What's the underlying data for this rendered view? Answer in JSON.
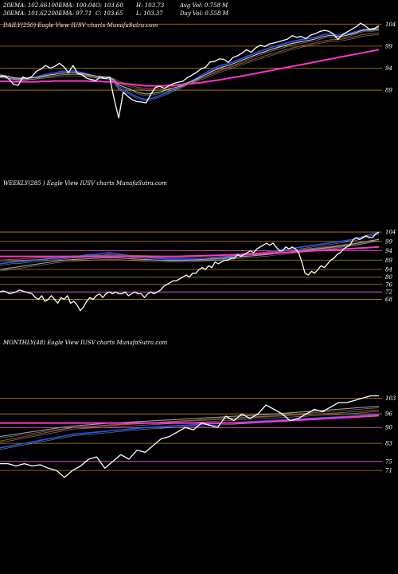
{
  "header": {
    "line1": [
      "20EMA: 102.66",
      "100EMA: 100.04",
      "O: 103.60",
      "H: 103.73",
      "Avg Vol: 0.758  M"
    ],
    "line2": [
      "30EMA: 101.62",
      "200EMA: 97.71",
      "C: 103.65",
      "L: 103.37",
      "Day Vol: 0.558 M"
    ]
  },
  "colors": {
    "background": "#000000",
    "price": "#ffffff",
    "ema_blue": "#2255ff",
    "ema_magenta": "#ff33cc",
    "ema_brown": "#a0522d",
    "ema_tan": "#d8c89a",
    "ema_grey": "#aaaaaa",
    "level_line": "#b8860b",
    "level_line_pink": "#ff66cc"
  },
  "chart_data": [
    {
      "type": "line",
      "title": "DAILY(250) Eagle  View  IUSV charts MunafaSutra.com",
      "ticks": [
        104,
        99,
        94,
        89
      ],
      "ylim": [
        80.5,
        105.5
      ],
      "series": [
        {
          "role": "price",
          "values": [
            92.0,
            92.2,
            91.5,
            90.3,
            90.1,
            92.0,
            91.6,
            92.1,
            93.3,
            93.8,
            94.6,
            94.0,
            94.4,
            95.1,
            94.3,
            93.0,
            94.6,
            92.8,
            92.5,
            91.7,
            91.4,
            91.2,
            92.0,
            91.6,
            92.0,
            87.0,
            82.7,
            88.5,
            87.6,
            86.8,
            86.4,
            86.3,
            86.1,
            88.0,
            89.6,
            89.9,
            89.4,
            90.0,
            90.5,
            90.8,
            91.0,
            91.8,
            92.4,
            93.0,
            93.8,
            94.2,
            95.4,
            95.5,
            96.1,
            96.0,
            95.3,
            96.4,
            96.8,
            97.4,
            98.2,
            97.6,
            98.6,
            99.2,
            98.9,
            99.5,
            99.7,
            100.0,
            100.3,
            100.6,
            101.4,
            101.0,
            101.2,
            100.7,
            101.5,
            101.8,
            102.3,
            102.6,
            102.4,
            101.8,
            100.5,
            101.6,
            102.2,
            102.8,
            103.4,
            104.2,
            103.6,
            102.8,
            103.0,
            103.6
          ]
        },
        {
          "role": "ema",
          "color": "blue",
          "values": [
            92.5,
            92.3,
            92.0,
            91.6,
            91.5,
            91.6,
            91.7,
            91.8,
            92.0,
            92.3,
            92.6,
            92.8,
            92.9,
            93.2,
            93.3,
            93.2,
            93.4,
            93.2,
            93.0,
            92.7,
            92.4,
            92.1,
            92.0,
            91.9,
            91.8,
            91.0,
            89.5,
            89.0,
            88.6,
            88.0,
            87.5,
            87.1,
            86.9,
            87.1,
            87.4,
            87.8,
            88.2,
            88.6,
            89.1,
            89.5,
            90.0,
            90.6,
            91.1,
            91.7,
            92.3,
            92.9,
            93.5,
            94.0,
            94.5,
            94.8,
            95.0,
            95.4,
            95.8,
            96.2,
            96.7,
            97.0,
            97.5,
            97.9,
            98.2,
            98.6,
            98.9,
            99.2,
            99.5,
            99.8,
            100.1,
            100.3,
            100.5,
            100.6,
            100.8,
            101.0,
            101.3,
            101.6,
            101.8,
            101.7,
            101.5,
            101.6,
            101.8,
            102.0,
            102.3,
            102.7,
            102.9,
            102.9,
            103.0,
            103.2
          ]
        },
        {
          "role": "ema",
          "color": "brown",
          "values": [
            92.2,
            92.1,
            92.0,
            91.9,
            91.8,
            91.8,
            91.8,
            91.8,
            91.9,
            92.0,
            92.1,
            92.2,
            92.3,
            92.4,
            92.5,
            92.5,
            92.6,
            92.6,
            92.5,
            92.4,
            92.3,
            92.2,
            92.1,
            92.0,
            91.9,
            91.6,
            91.0,
            90.6,
            90.3,
            90.0,
            89.7,
            89.5,
            89.3,
            89.3,
            89.3,
            89.4,
            89.5,
            89.7,
            89.9,
            90.1,
            90.4,
            90.7,
            91.0,
            91.3,
            91.7,
            92.1,
            92.5,
            92.9,
            93.3,
            93.7,
            94.0,
            94.4,
            94.8,
            95.1,
            95.5,
            95.8,
            96.2,
            96.5,
            96.8,
            97.1,
            97.4,
            97.7,
            98.0,
            98.3,
            98.6,
            98.8,
            99.1,
            99.3,
            99.5,
            99.7,
            100.0,
            100.2,
            100.4,
            100.5,
            100.5,
            100.6,
            100.8,
            101.0,
            101.2,
            101.5,
            101.7,
            101.8,
            101.9,
            102.0
          ]
        },
        {
          "role": "ema",
          "color": "tan",
          "values": [
            92.4,
            92.3,
            92.1,
            91.8,
            91.7,
            91.7,
            91.7,
            91.8,
            91.9,
            92.1,
            92.3,
            92.5,
            92.6,
            92.8,
            92.9,
            92.9,
            93.0,
            92.9,
            92.8,
            92.6,
            92.4,
            92.2,
            92.1,
            92.0,
            91.9,
            91.3,
            90.2,
            89.8,
            89.4,
            89.0,
            88.6,
            88.3,
            88.1,
            88.2,
            88.4,
            88.6,
            88.9,
            89.2,
            89.5,
            89.8,
            90.2,
            90.6,
            91.0,
            91.5,
            92.0,
            92.5,
            93.0,
            93.5,
            93.9,
            94.3,
            94.6,
            95.0,
            95.4,
            95.8,
            96.2,
            96.6,
            97.0,
            97.4,
            97.7,
            98.1,
            98.4,
            98.7,
            99.0,
            99.3,
            99.6,
            99.8,
            100.0,
            100.2,
            100.4,
            100.6,
            100.9,
            101.2,
            101.4,
            101.4,
            101.2,
            101.3,
            101.5,
            101.8,
            102.1,
            102.5,
            102.7,
            102.7,
            102.8,
            102.9
          ]
        },
        {
          "role": "ema",
          "color": "magenta",
          "values": [
            91.0,
            91.0,
            91.0,
            90.9,
            90.9,
            90.9,
            90.9,
            90.9,
            90.9,
            91.0,
            91.0,
            91.0,
            91.1,
            91.1,
            91.1,
            91.1,
            91.1,
            91.1,
            91.1,
            91.1,
            91.0,
            91.0,
            91.0,
            90.9,
            90.9,
            90.8,
            90.6,
            90.5,
            90.4,
            90.3,
            90.2,
            90.1,
            90.0,
            90.0,
            90.0,
            90.0,
            90.0,
            90.1,
            90.1,
            90.2,
            90.3,
            90.4,
            90.5,
            90.6,
            90.7,
            90.9,
            91.0,
            91.2,
            91.3,
            91.5,
            91.7,
            91.9,
            92.0,
            92.2,
            92.4,
            92.6,
            92.8,
            93.0,
            93.2,
            93.4,
            93.6,
            93.8,
            94.0,
            94.2,
            94.4,
            94.6,
            94.8,
            95.0,
            95.2,
            95.4,
            95.6,
            95.8,
            96.0,
            96.2,
            96.4,
            96.6,
            96.8,
            97.0,
            97.2,
            97.4,
            97.6,
            97.8,
            98.0,
            98.2
          ]
        }
      ]
    },
    {
      "type": "line",
      "title": "WEEKLY(285                   ) Eagle  View  IUSV charts MunafaSutra.com",
      "ticks": [
        104,
        99,
        94,
        89,
        84,
        80,
        76,
        72,
        68
      ],
      "ylim": [
        61,
        107
      ],
      "series": [
        {
          "role": "price",
          "values": [
            72,
            72.5,
            72,
            71,
            71.5,
            72,
            73,
            72.5,
            72,
            71.5,
            71,
            69,
            68,
            70,
            67,
            68,
            70,
            68,
            66,
            69,
            68,
            70,
            66,
            67,
            65,
            62,
            64,
            67,
            69,
            68,
            70,
            71,
            69,
            71,
            72,
            71,
            72,
            71,
            71,
            72,
            70,
            71,
            72,
            71,
            71,
            69,
            71,
            72,
            71,
            72,
            73,
            75,
            76,
            77,
            78,
            78,
            79,
            80,
            81,
            80,
            82,
            82,
            84,
            85,
            84,
            86,
            85,
            88,
            87,
            88,
            89,
            89,
            90,
            90,
            92,
            91,
            92,
            93,
            94,
            93,
            95,
            96,
            97,
            98,
            97,
            98,
            96,
            94,
            94,
            96,
            95,
            96,
            95,
            93,
            88,
            82,
            81,
            83,
            82,
            84,
            86,
            85,
            87,
            89,
            90,
            92,
            93,
            95,
            96,
            97,
            100,
            101,
            100,
            101,
            102,
            101,
            101,
            103,
            104
          ]
        },
        {
          "role": "ema",
          "color": "blue",
          "values": [
            87,
            87.5,
            88,
            88,
            88.5,
            89,
            89,
            89.5,
            90,
            90,
            90.5,
            91,
            91,
            91.5,
            92,
            92,
            92.5,
            93,
            92.5,
            92,
            91.5,
            91,
            91,
            90.5,
            90,
            90,
            89.5,
            89.5,
            89.5,
            89.5,
            89.5,
            89.5,
            89.5,
            90,
            90,
            90.5,
            91,
            91.5,
            92,
            92,
            92.5,
            93,
            93.5,
            94,
            94.5,
            95,
            95.5,
            96,
            96.5,
            97,
            97.5,
            98,
            98.5,
            99,
            99.5,
            100,
            101,
            102,
            103,
            103.5
          ]
        },
        {
          "role": "ema",
          "color": "brown",
          "values": [
            89,
            89.2,
            89.4,
            89.6,
            89.8,
            90,
            90.2,
            90.4,
            90.6,
            90.8,
            91,
            91.1,
            91.2,
            91.3,
            91.4,
            91.5,
            91.6,
            91.7,
            91.7,
            91.7,
            91.6,
            91.5,
            91.4,
            91.3,
            91.2,
            91.1,
            91,
            91,
            91,
            91,
            91.1,
            91.2,
            91.3,
            91.4,
            91.6,
            91.8,
            92,
            92.2,
            92.4,
            92.6,
            92.8,
            93,
            93.3,
            93.6,
            93.9,
            94.2,
            94.5,
            94.8,
            95.1,
            95.4,
            95.8,
            96.2,
            96.6,
            97,
            97.4,
            97.8,
            98.4,
            99,
            99.6,
            100.2
          ]
        },
        {
          "role": "ema",
          "color": "grey",
          "values": [
            84,
            84.5,
            85,
            85.5,
            86,
            86.5,
            87,
            87.5,
            88,
            88.5,
            89,
            89.2,
            89.4,
            89.6,
            89.8,
            90,
            90.2,
            90.3,
            90.2,
            90,
            89.8,
            89.6,
            89.4,
            89.2,
            89,
            88.9,
            88.8,
            88.8,
            88.8,
            88.9,
            89,
            89.2,
            89.4,
            89.6,
            89.8,
            90,
            90.3,
            90.6,
            90.9,
            91.2,
            91.5,
            91.8,
            92.1,
            92.5,
            92.9,
            93.3,
            93.7,
            94.1,
            94.5,
            94.9,
            95.3,
            95.7,
            96.1,
            96.6,
            97.1,
            97.6,
            98.2,
            98.8,
            99.4,
            100
          ]
        },
        {
          "role": "ema",
          "color": "magenta",
          "values": [
            91,
            91,
            91,
            91,
            91,
            91,
            91,
            91,
            91,
            91,
            91,
            91,
            91,
            91,
            91,
            91,
            91,
            91,
            91,
            91,
            91,
            91,
            91,
            91,
            91,
            91,
            91,
            91,
            91,
            91.1,
            91.2,
            91.3,
            91.4,
            91.5,
            91.6,
            91.7,
            91.8,
            91.9,
            92,
            92.1,
            92.2,
            92.4,
            92.6,
            92.8,
            93,
            93.2,
            93.4,
            93.6,
            93.8,
            94,
            94.2,
            94.4,
            94.6,
            94.8,
            95,
            95.2,
            95.4,
            95.6,
            95.8,
            96
          ]
        }
      ]
    },
    {
      "type": "line",
      "title": "MONTHLY(48) Eagle  View  IUSV charts MunafaSutra.com",
      "ticks": [
        103,
        96,
        90,
        83,
        75,
        71
      ],
      "ylim": [
        64,
        107
      ],
      "series": [
        {
          "role": "price",
          "values": [
            74,
            74,
            73,
            74,
            73,
            73.5,
            72,
            71,
            68,
            71,
            73,
            76,
            77,
            72,
            75,
            78,
            76,
            80,
            79,
            82,
            85,
            86,
            88,
            90,
            89,
            92,
            91,
            90,
            95,
            93,
            96,
            94,
            96,
            100,
            98,
            96,
            93,
            94,
            96,
            98,
            97,
            99,
            101,
            101,
            102,
            103,
            104,
            104
          ]
        },
        {
          "role": "ema",
          "color": "blue",
          "values": [
            81,
            82,
            83,
            84,
            85,
            86,
            87,
            87.5,
            88,
            88.5,
            89,
            89.5,
            90,
            90.3,
            90.6,
            90.9,
            91.2,
            91.5,
            91.8,
            92.1,
            92.4,
            92.7,
            93,
            93.3,
            93.6,
            93.9,
            94.2,
            94.5,
            94.8,
            95.1,
            95.4,
            95.7
          ]
        },
        {
          "role": "ema",
          "color": "brown",
          "values": [
            84,
            85,
            86,
            87,
            88,
            89,
            90,
            90.3,
            90.6,
            90.9,
            91.2,
            91.5,
            91.8,
            92.1,
            92.4,
            92.7,
            93,
            93.3,
            93.6,
            93.9,
            94.2,
            94.5,
            94.8,
            95.1,
            95.4,
            95.7,
            96,
            96.3,
            96.6,
            97,
            97.4,
            97.8
          ]
        },
        {
          "role": "ema",
          "color": "grey",
          "values": [
            86,
            86.8,
            87.6,
            88.4,
            89.2,
            90,
            90.6,
            91.1,
            91.5,
            91.9,
            92.2,
            92.5,
            92.8,
            93.1,
            93.4,
            93.7,
            94,
            94.3,
            94.6,
            94.9,
            95.2,
            95.5,
            95.8,
            96.2,
            96.6,
            97,
            97.4,
            97.8,
            98.2,
            98.6,
            99,
            99.4
          ]
        },
        {
          "role": "ema",
          "color": "magenta",
          "values": [
            92,
            92,
            92,
            92,
            92,
            92,
            92,
            92,
            92,
            92,
            92,
            92,
            92,
            92,
            92,
            92,
            92,
            92,
            92,
            92,
            92,
            92.3,
            92.6,
            92.9,
            93.2,
            93.5,
            93.8,
            94.1,
            94.4,
            94.7,
            95,
            95.3
          ]
        }
      ]
    }
  ]
}
